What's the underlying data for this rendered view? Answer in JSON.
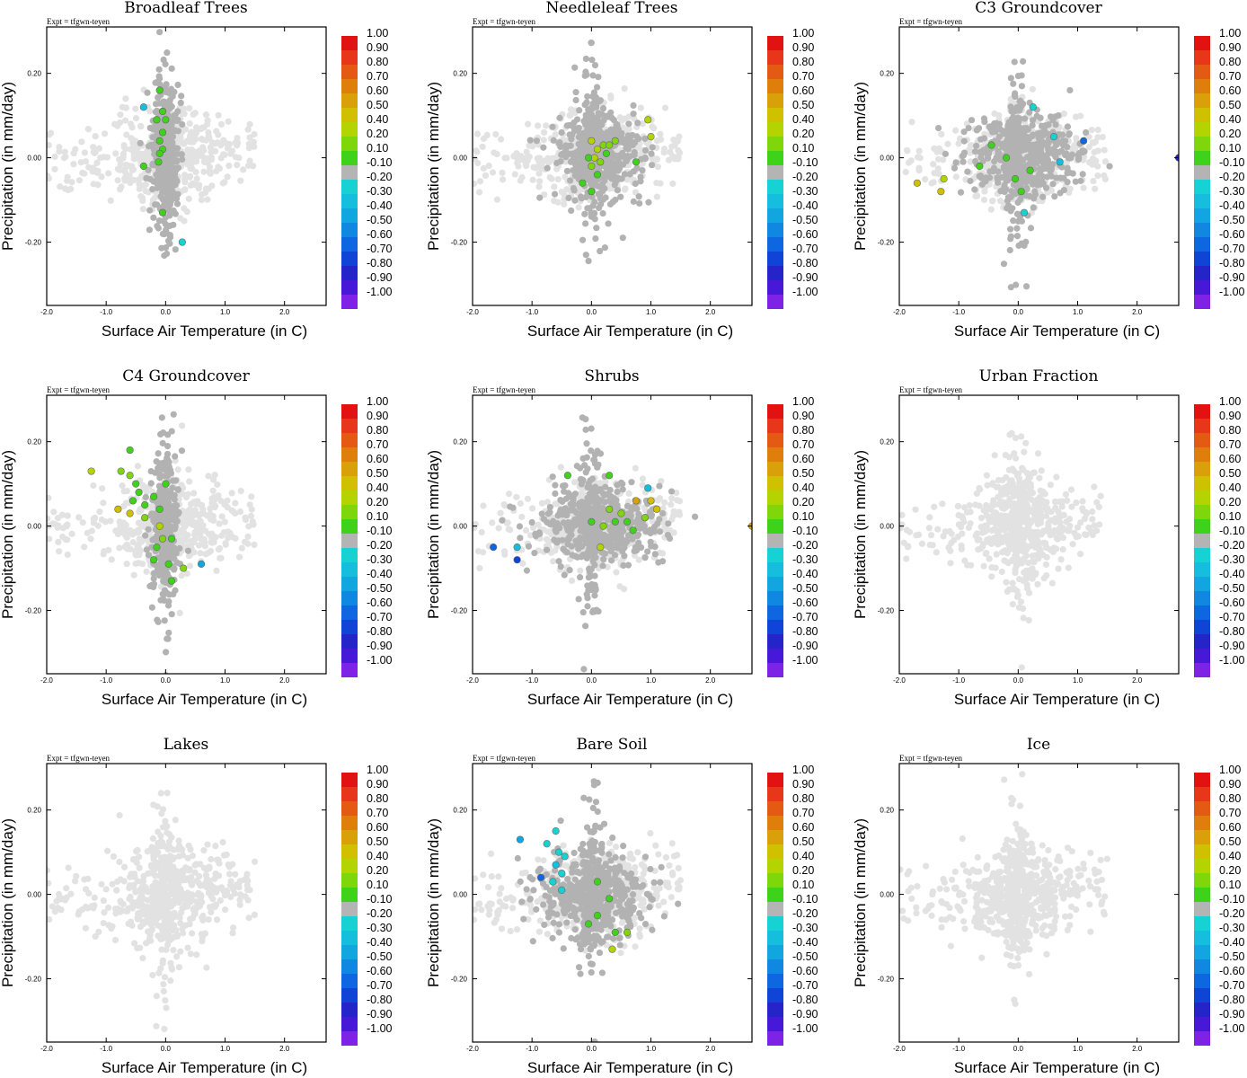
{
  "figure": {
    "expt_label": "Expt = tfgwn-teyen",
    "xlabel": "Surface Air Temperature (in C)",
    "ylabel": "Precipitation (in mm/day)"
  },
  "colorbar": {
    "labels": [
      "1.00",
      "0.90",
      "0.80",
      "0.70",
      "0.60",
      "0.50",
      "0.40",
      "0.20",
      "0.10",
      "-0.10",
      "-0.20",
      "-0.30",
      "-0.40",
      "-0.50",
      "-0.60",
      "-0.70",
      "-0.80",
      "-0.90",
      "-1.00"
    ],
    "colors": [
      "#e31212",
      "#e8361a",
      "#e55a12",
      "#e07e0c",
      "#d9a00a",
      "#cfc000",
      "#b4d400",
      "#7fd60a",
      "#3ed21a",
      "#b4b4b4",
      "#16d2d2",
      "#14bedc",
      "#12a6e0",
      "#1088e2",
      "#0e66e0",
      "#1044d6",
      "#2424c8",
      "#4818d8",
      "#7e22e6"
    ]
  },
  "chart_data": [
    {
      "type": "scatter",
      "title": "Broadleaf Trees",
      "xlabel": "Surface Air Temperature (in C)",
      "ylabel": "Precipitation (in mm/day)",
      "xlim": [
        -2.0,
        2.7
      ],
      "ylim": [
        -0.35,
        0.31
      ],
      "xticks": [
        "-2.0",
        "-1.0",
        "0.0",
        "1.0",
        "2.0"
      ],
      "yticks": [
        "0.20",
        "0.00",
        "-0.20"
      ],
      "cloud": "grey",
      "core": "vertical",
      "highlights": [
        {
          "x": -0.37,
          "y": 0.12,
          "c": -0.3
        },
        {
          "x": -0.1,
          "y": 0.16,
          "c": 0.1
        },
        {
          "x": -0.05,
          "y": 0.11,
          "c": 0.1
        },
        {
          "x": -0.15,
          "y": 0.09,
          "c": 0.1
        },
        {
          "x": 0.0,
          "y": 0.09,
          "c": 0.1
        },
        {
          "x": -0.05,
          "y": 0.06,
          "c": 0.1
        },
        {
          "x": -0.1,
          "y": 0.04,
          "c": 0.1
        },
        {
          "x": -0.05,
          "y": 0.02,
          "c": 0.1
        },
        {
          "x": -0.1,
          "y": 0.01,
          "c": 0.1
        },
        {
          "x": -0.37,
          "y": -0.02,
          "c": 0.1
        },
        {
          "x": -0.12,
          "y": -0.01,
          "c": 0.1
        },
        {
          "x": -0.05,
          "y": -0.13,
          "c": 0.1
        },
        {
          "x": 0.28,
          "y": -0.2,
          "c": -0.2
        }
      ]
    },
    {
      "type": "scatter",
      "title": "Needleleaf Trees",
      "xlabel": "Surface Air Temperature (in C)",
      "ylabel": "Precipitation (in mm/day)",
      "xlim": [
        -2.0,
        2.7
      ],
      "ylim": [
        -0.35,
        0.31
      ],
      "xticks": [
        "-2.0",
        "-1.0",
        "0.0",
        "1.0",
        "2.0"
      ],
      "yticks": [
        "0.20",
        "0.00",
        "-0.20"
      ],
      "cloud": "grey",
      "core": "wide",
      "highlights": [
        {
          "x": 0.0,
          "y": 0.04,
          "c": 0.3
        },
        {
          "x": 0.1,
          "y": 0.02,
          "c": 0.3
        },
        {
          "x": 0.2,
          "y": 0.03,
          "c": 0.2
        },
        {
          "x": 0.3,
          "y": 0.03,
          "c": 0.2
        },
        {
          "x": 0.05,
          "y": 0.0,
          "c": 0.3
        },
        {
          "x": 0.15,
          "y": -0.01,
          "c": 0.2
        },
        {
          "x": 0.0,
          "y": -0.02,
          "c": 0.2
        },
        {
          "x": -0.05,
          "y": 0.0,
          "c": 0.1
        },
        {
          "x": 0.25,
          "y": 0.01,
          "c": 0.1
        },
        {
          "x": 0.95,
          "y": 0.09,
          "c": 0.4
        },
        {
          "x": 1.0,
          "y": 0.05,
          "c": 0.3
        },
        {
          "x": 0.75,
          "y": -0.01,
          "c": 0.1
        },
        {
          "x": -0.15,
          "y": -0.06,
          "c": 0.1
        },
        {
          "x": 0.0,
          "y": -0.08,
          "c": 0.1
        },
        {
          "x": 0.4,
          "y": 0.04,
          "c": 0.2
        },
        {
          "x": 0.1,
          "y": -0.04,
          "c": 0.1
        }
      ]
    },
    {
      "type": "scatter",
      "title": "C3 Groundcover",
      "xlabel": "Surface Air Temperature (in C)",
      "ylabel": "Precipitation (in mm/day)",
      "xlim": [
        -2.0,
        2.7
      ],
      "ylim": [
        -0.35,
        0.31
      ],
      "xticks": [
        "-2.0",
        "-1.0",
        "0.0",
        "1.0",
        "2.0"
      ],
      "yticks": [
        "0.20",
        "0.00",
        "-0.20"
      ],
      "cloud": "grey",
      "core": "horizontal",
      "highlights": [
        {
          "x": -1.7,
          "y": -0.06,
          "c": 0.5
        },
        {
          "x": -1.3,
          "y": -0.08,
          "c": 0.5
        },
        {
          "x": -1.25,
          "y": -0.05,
          "c": 0.3
        },
        {
          "x": -0.65,
          "y": -0.02,
          "c": 0.1
        },
        {
          "x": -0.45,
          "y": 0.03,
          "c": 0.1
        },
        {
          "x": -0.2,
          "y": 0.0,
          "c": 0.1
        },
        {
          "x": -0.05,
          "y": -0.05,
          "c": 0.1
        },
        {
          "x": 0.05,
          "y": -0.08,
          "c": 0.1
        },
        {
          "x": 0.2,
          "y": -0.03,
          "c": 0.1
        },
        {
          "x": 0.25,
          "y": 0.12,
          "c": -0.2
        },
        {
          "x": 0.6,
          "y": 0.05,
          "c": -0.2
        },
        {
          "x": 1.1,
          "y": 0.04,
          "c": -0.6
        },
        {
          "x": 0.7,
          "y": -0.01,
          "c": -0.3
        },
        {
          "x": 0.1,
          "y": -0.13,
          "c": -0.2
        },
        {
          "x": 2.7,
          "y": 0.0,
          "c": -0.8
        }
      ]
    },
    {
      "type": "scatter",
      "title": "C4 Groundcover",
      "xlabel": "Surface Air Temperature (in C)",
      "ylabel": "Precipitation (in mm/day)",
      "xlim": [
        -2.0,
        2.7
      ],
      "ylim": [
        -0.35,
        0.31
      ],
      "xticks": [
        "-2.0",
        "-1.0",
        "0.0",
        "1.0",
        "2.0"
      ],
      "yticks": [
        "0.20",
        "0.00",
        "-0.20"
      ],
      "cloud": "grey",
      "core": "vertical",
      "highlights": [
        {
          "x": -1.25,
          "y": 0.13,
          "c": 0.4
        },
        {
          "x": -0.6,
          "y": 0.18,
          "c": 0.1
        },
        {
          "x": -0.75,
          "y": 0.13,
          "c": 0.2
        },
        {
          "x": -0.6,
          "y": 0.12,
          "c": 0.2
        },
        {
          "x": -0.5,
          "y": 0.1,
          "c": 0.1
        },
        {
          "x": -0.45,
          "y": 0.08,
          "c": 0.1
        },
        {
          "x": -0.55,
          "y": 0.06,
          "c": 0.1
        },
        {
          "x": -0.35,
          "y": 0.05,
          "c": 0.1
        },
        {
          "x": -0.2,
          "y": 0.07,
          "c": 0.1
        },
        {
          "x": 0.0,
          "y": 0.1,
          "c": 0.1
        },
        {
          "x": -0.8,
          "y": 0.04,
          "c": 0.5
        },
        {
          "x": -0.6,
          "y": 0.03,
          "c": 0.5
        },
        {
          "x": -0.35,
          "y": 0.02,
          "c": 0.2
        },
        {
          "x": -0.1,
          "y": 0.0,
          "c": 0.3
        },
        {
          "x": -0.05,
          "y": -0.03,
          "c": 0.2
        },
        {
          "x": 0.1,
          "y": -0.03,
          "c": 0.1
        },
        {
          "x": -0.15,
          "y": -0.05,
          "c": 0.1
        },
        {
          "x": -0.2,
          "y": -0.08,
          "c": 0.1
        },
        {
          "x": 0.05,
          "y": -0.09,
          "c": 0.1
        },
        {
          "x": 0.3,
          "y": -0.1,
          "c": 0.2
        },
        {
          "x": 0.1,
          "y": -0.13,
          "c": 0.1
        },
        {
          "x": 0.6,
          "y": -0.09,
          "c": -0.4
        },
        {
          "x": -0.1,
          "y": 0.04,
          "c": 0.1
        }
      ]
    },
    {
      "type": "scatter",
      "title": "Shrubs",
      "xlabel": "Surface Air Temperature (in C)",
      "ylabel": "Precipitation (in mm/day)",
      "xlim": [
        -2.0,
        2.7
      ],
      "ylim": [
        -0.35,
        0.31
      ],
      "xticks": [
        "-2.0",
        "-1.0",
        "0.0",
        "1.0",
        "2.0"
      ],
      "yticks": [
        "0.20",
        "0.00",
        "-0.20"
      ],
      "cloud": "grey",
      "core": "horizontal",
      "highlights": [
        {
          "x": -1.65,
          "y": -0.05,
          "c": -0.6
        },
        {
          "x": -1.25,
          "y": -0.05,
          "c": -0.3
        },
        {
          "x": -1.25,
          "y": -0.08,
          "c": -0.7
        },
        {
          "x": -0.4,
          "y": 0.12,
          "c": 0.1
        },
        {
          "x": 0.3,
          "y": 0.12,
          "c": 0.1
        },
        {
          "x": 0.0,
          "y": 0.01,
          "c": 0.1
        },
        {
          "x": 0.2,
          "y": 0.0,
          "c": 0.2
        },
        {
          "x": 0.3,
          "y": 0.04,
          "c": 0.2
        },
        {
          "x": 0.5,
          "y": 0.03,
          "c": 0.2
        },
        {
          "x": 0.4,
          "y": 0.01,
          "c": 0.1
        },
        {
          "x": 0.6,
          "y": 0.01,
          "c": 0.1
        },
        {
          "x": 0.7,
          "y": -0.01,
          "c": 0.1
        },
        {
          "x": 1.0,
          "y": 0.06,
          "c": 0.5
        },
        {
          "x": 1.1,
          "y": 0.04,
          "c": 0.5
        },
        {
          "x": 0.95,
          "y": 0.09,
          "c": -0.3
        },
        {
          "x": 0.75,
          "y": 0.06,
          "c": 0.6
        },
        {
          "x": 0.15,
          "y": -0.05,
          "c": 0.3
        },
        {
          "x": 0.9,
          "y": 0.02,
          "c": 0.2
        },
        {
          "x": 2.7,
          "y": 0.0,
          "c": 0.6
        }
      ]
    },
    {
      "type": "scatter",
      "title": "Urban Fraction",
      "xlabel": "Surface Air Temperature (in C)",
      "ylabel": "Precipitation (in mm/day)",
      "xlim": [
        -2.0,
        2.7
      ],
      "ylim": [
        -0.35,
        0.31
      ],
      "xticks": [
        "-2.0",
        "-1.0",
        "0.0",
        "1.0",
        "2.0"
      ],
      "yticks": [
        "0.20",
        "0.00",
        "-0.20"
      ],
      "cloud": "light",
      "core": "none",
      "highlights": []
    },
    {
      "type": "scatter",
      "title": "Lakes",
      "xlabel": "Surface Air Temperature (in C)",
      "ylabel": "Precipitation (in mm/day)",
      "xlim": [
        -2.0,
        2.7
      ],
      "ylim": [
        -0.35,
        0.31
      ],
      "xticks": [
        "-2.0",
        "-1.0",
        "0.0",
        "1.0",
        "2.0"
      ],
      "yticks": [
        "0.20",
        "0.00",
        "-0.20"
      ],
      "cloud": "light",
      "core": "none",
      "highlights": []
    },
    {
      "type": "scatter",
      "title": "Bare Soil",
      "xlabel": "Surface Air Temperature (in C)",
      "ylabel": "Precipitation (in mm/day)",
      "xlim": [
        -2.0,
        2.7
      ],
      "ylim": [
        -0.35,
        0.31
      ],
      "xticks": [
        "-2.0",
        "-1.0",
        "0.0",
        "1.0",
        "2.0"
      ],
      "yticks": [
        "0.20",
        "0.00",
        "-0.20"
      ],
      "cloud": "grey",
      "core": "mixed",
      "highlights": [
        {
          "x": -1.2,
          "y": 0.13,
          "c": -0.4
        },
        {
          "x": -0.75,
          "y": 0.12,
          "c": -0.2
        },
        {
          "x": -0.6,
          "y": 0.15,
          "c": -0.2
        },
        {
          "x": -0.55,
          "y": 0.1,
          "c": -0.2
        },
        {
          "x": -0.45,
          "y": 0.09,
          "c": -0.2
        },
        {
          "x": -0.6,
          "y": 0.07,
          "c": -0.3
        },
        {
          "x": -0.5,
          "y": 0.05,
          "c": -0.2
        },
        {
          "x": -0.65,
          "y": 0.03,
          "c": -0.2
        },
        {
          "x": -0.85,
          "y": 0.04,
          "c": -0.6
        },
        {
          "x": -0.5,
          "y": 0.01,
          "c": -0.2
        },
        {
          "x": 0.1,
          "y": 0.03,
          "c": 0.1
        },
        {
          "x": 0.3,
          "y": -0.01,
          "c": 0.1
        },
        {
          "x": 0.1,
          "y": -0.05,
          "c": 0.1
        },
        {
          "x": -0.05,
          "y": -0.07,
          "c": 0.1
        },
        {
          "x": 0.4,
          "y": -0.09,
          "c": 0.1
        },
        {
          "x": 0.6,
          "y": -0.09,
          "c": 0.2
        },
        {
          "x": 0.35,
          "y": -0.13,
          "c": 0.3
        }
      ]
    },
    {
      "type": "scatter",
      "title": "Ice",
      "xlabel": "Surface Air Temperature (in C)",
      "ylabel": "Precipitation (in mm/day)",
      "xlim": [
        -2.0,
        2.7
      ],
      "ylim": [
        -0.35,
        0.31
      ],
      "xticks": [
        "-2.0",
        "-1.0",
        "0.0",
        "1.0",
        "2.0"
      ],
      "yticks": [
        "0.20",
        "0.00",
        "-0.20"
      ],
      "cloud": "light",
      "core": "none",
      "highlights": []
    }
  ]
}
